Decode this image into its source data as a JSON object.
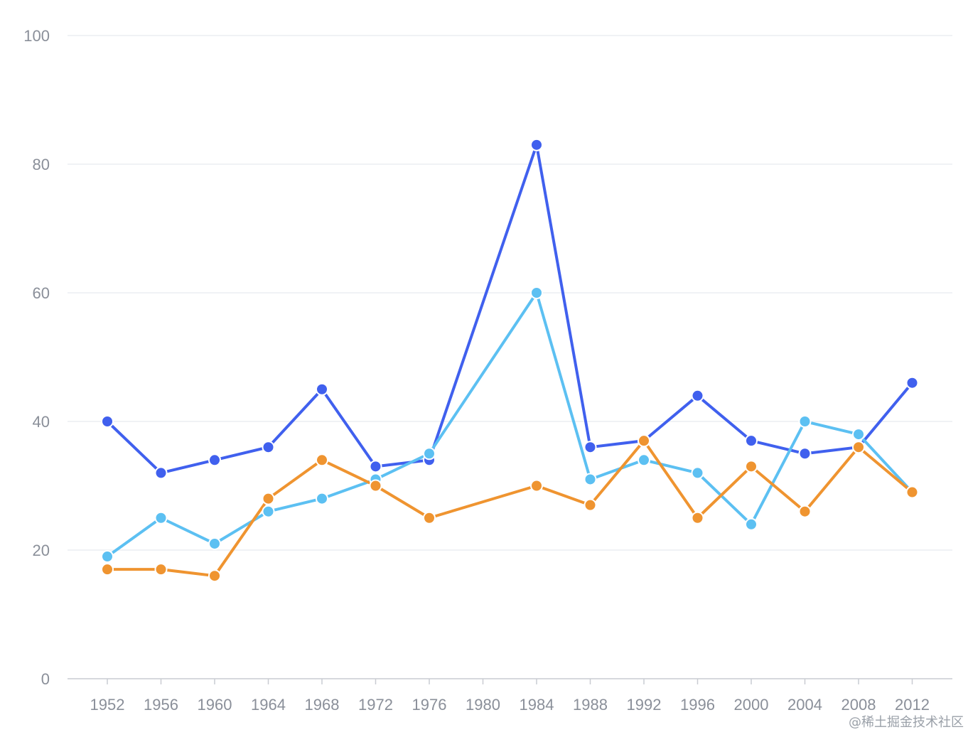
{
  "chart_data": {
    "type": "line",
    "title": "",
    "xlabel": "",
    "ylabel": "",
    "categories": [
      "1952",
      "1956",
      "1960",
      "1964",
      "1968",
      "1972",
      "1976",
      "1980",
      "1984",
      "1988",
      "1992",
      "1996",
      "2000",
      "2004",
      "2008",
      "2012"
    ],
    "y_ticks": [
      "0",
      "20",
      "40",
      "60",
      "80",
      "100"
    ],
    "ylim": [
      0,
      100
    ],
    "grid": true,
    "legend": "none",
    "series": [
      {
        "color": "#4060ee",
        "values": [
          40,
          32,
          34,
          36,
          45,
          33,
          34,
          null,
          83,
          36,
          37,
          44,
          37,
          35,
          36,
          46
        ]
      },
      {
        "color": "#5cc0f2",
        "values": [
          19,
          25,
          21,
          26,
          28,
          31,
          35,
          null,
          60,
          31,
          34,
          32,
          24,
          40,
          38,
          29
        ]
      },
      {
        "color": "#ef9430",
        "values": [
          17,
          17,
          16,
          28,
          34,
          30,
          25,
          null,
          30,
          27,
          37,
          25,
          33,
          26,
          36,
          29
        ]
      }
    ]
  },
  "watermark": "@稀土掘金技术社区"
}
